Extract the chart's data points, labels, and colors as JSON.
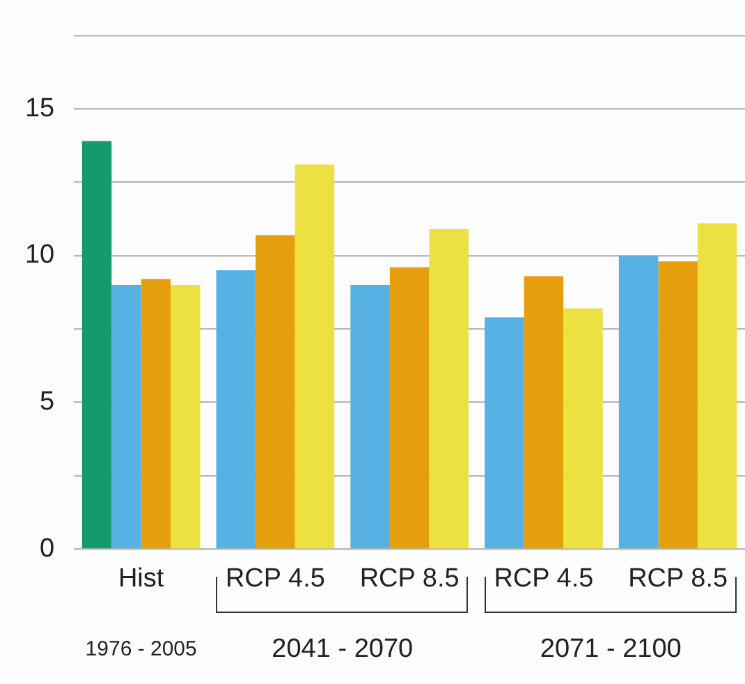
{
  "chart_data": {
    "type": "bar",
    "categories": [
      "Hist",
      "RCP 4.5",
      "RCP 8.5",
      "RCP 4.5",
      "RCP 8.5"
    ],
    "series": [
      {
        "color": "#159a6e",
        "values": [
          13.9,
          null,
          null,
          null,
          null
        ]
      },
      {
        "color": "#55b2e3",
        "values": [
          9.0,
          9.5,
          9.0,
          7.9,
          10.0
        ]
      },
      {
        "color": "#e59e0c",
        "values": [
          9.2,
          10.7,
          9.6,
          9.3,
          9.8
        ]
      },
      {
        "color": "#ede142",
        "values": [
          9.0,
          13.1,
          10.9,
          8.2,
          11.1
        ]
      }
    ],
    "ylim": [
      0,
      17.5
    ],
    "yticks": [
      0,
      {
        "value": 2.5,
        "label": null
      },
      5,
      {
        "value": 7.5,
        "label": null
      },
      10,
      {
        "value": 12.5,
        "label": null
      },
      15,
      {
        "value": 17.5,
        "label": null
      }
    ],
    "grid": "y",
    "legend": false,
    "annotations": [
      "1976 - 2005",
      "2041 - 2070",
      "2071 - 2100"
    ]
  }
}
